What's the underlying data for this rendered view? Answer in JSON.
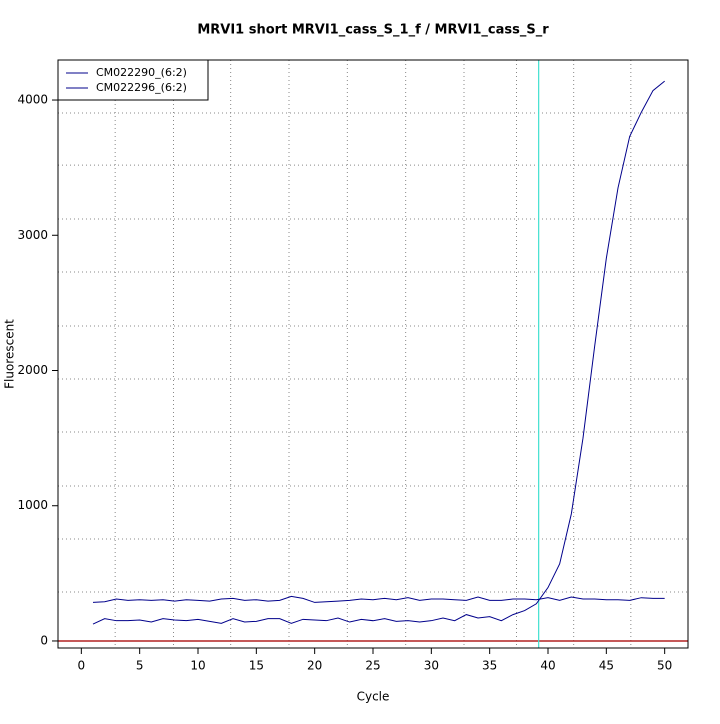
{
  "chart_data": {
    "type": "line",
    "title": "MRVI1 short MRVI1_cass_S_1_f / MRVI1_cass_S_r",
    "x_label": "Cycle",
    "y_label": "Fluorescent",
    "x": [
      1,
      2,
      3,
      4,
      5,
      6,
      7,
      8,
      9,
      10,
      11,
      12,
      13,
      14,
      15,
      16,
      17,
      18,
      19,
      20,
      21,
      22,
      23,
      24,
      25,
      26,
      27,
      28,
      29,
      30,
      31,
      32,
      33,
      34,
      35,
      36,
      37,
      38,
      39,
      40,
      41,
      42,
      43,
      44,
      45,
      46,
      47,
      48,
      49,
      50
    ],
    "series": [
      {
        "name": "CM022290_(6:2)",
        "color": "#00008b",
        "values": [
          285,
          290,
          310,
          300,
          305,
          300,
          305,
          295,
          305,
          300,
          295,
          310,
          315,
          300,
          305,
          295,
          300,
          330,
          315,
          285,
          290,
          295,
          300,
          310,
          305,
          315,
          305,
          320,
          300,
          310,
          310,
          305,
          300,
          325,
          300,
          300,
          310,
          310,
          305,
          320,
          300,
          325,
          310,
          310,
          305,
          305,
          300,
          320,
          315,
          315
        ]
      },
      {
        "name": "CM022296_(6:2)",
        "color": "#00008b",
        "values": [
          125,
          165,
          150,
          150,
          155,
          140,
          165,
          155,
          150,
          160,
          145,
          130,
          165,
          140,
          145,
          165,
          165,
          130,
          160,
          155,
          150,
          170,
          140,
          160,
          150,
          165,
          145,
          150,
          140,
          150,
          170,
          150,
          195,
          170,
          180,
          150,
          195,
          225,
          275,
          395,
          570,
          940,
          1500,
          2180,
          2830,
          3350,
          3730,
          3910,
          4070,
          4140
        ]
      }
    ],
    "xlim": [
      -2,
      52
    ],
    "ylim": [
      -52,
      4296
    ],
    "xticks": [
      0,
      5,
      10,
      15,
      20,
      25,
      30,
      35,
      40,
      45,
      50
    ],
    "yticks": [
      0,
      1000,
      2000,
      3000,
      4000
    ],
    "grid": true,
    "xgrid": [
      2.9,
      7.9,
      12.8,
      17.8,
      22.8,
      27.8,
      32.8,
      37.3,
      42.2,
      47.1
    ],
    "ygrid": [
      362,
      754,
      1146,
      1545,
      1937,
      2329,
      2728,
      3120,
      3519,
      3904
    ],
    "threshold_cycle": 39.2,
    "threshold_color": "#40e0d0",
    "baseline": 0,
    "baseline_color": "#b22222",
    "legend": "top-left"
  }
}
